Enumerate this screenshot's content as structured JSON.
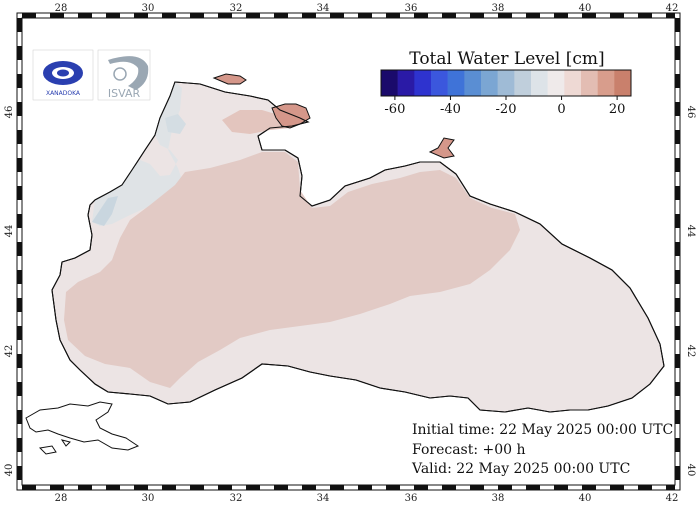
{
  "map": {
    "colorbar": {
      "title": "Total Water Level [cm]",
      "tick_labels": [
        "-60",
        "-40",
        "-20",
        "0",
        "20"
      ],
      "colors": [
        "#1a0a6b",
        "#2a1aa6",
        "#2e33cf",
        "#3b57dd",
        "#3f73d8",
        "#5a8ed3",
        "#7ba6d3",
        "#9fbbd6",
        "#c0cfdc",
        "#dde3e8",
        "#efeaea",
        "#eed9d4",
        "#e3bdb3",
        "#d89d8c",
        "#c9806c"
      ]
    },
    "logos": {
      "left_text": "XANADOKA",
      "right_text": "ISVAR"
    },
    "axis": {
      "lon_labels": [
        "28",
        "30",
        "32",
        "34",
        "36",
        "38",
        "40",
        "42"
      ],
      "lat_labels": [
        "40",
        "42",
        "44",
        "46"
      ]
    },
    "info": {
      "initial_time": "Initial time: 22 May 2025 00:00 UTC",
      "forecast": "Forecast: +00 h",
      "valid": "Valid: 22 May 2025 00:00 UTC"
    },
    "field_colors": {
      "background_sea": "#ece4e4",
      "high": "#e2c7c2",
      "azov": "#d5978a",
      "low_nw": "#d4dde2",
      "coast": "#111111"
    }
  }
}
